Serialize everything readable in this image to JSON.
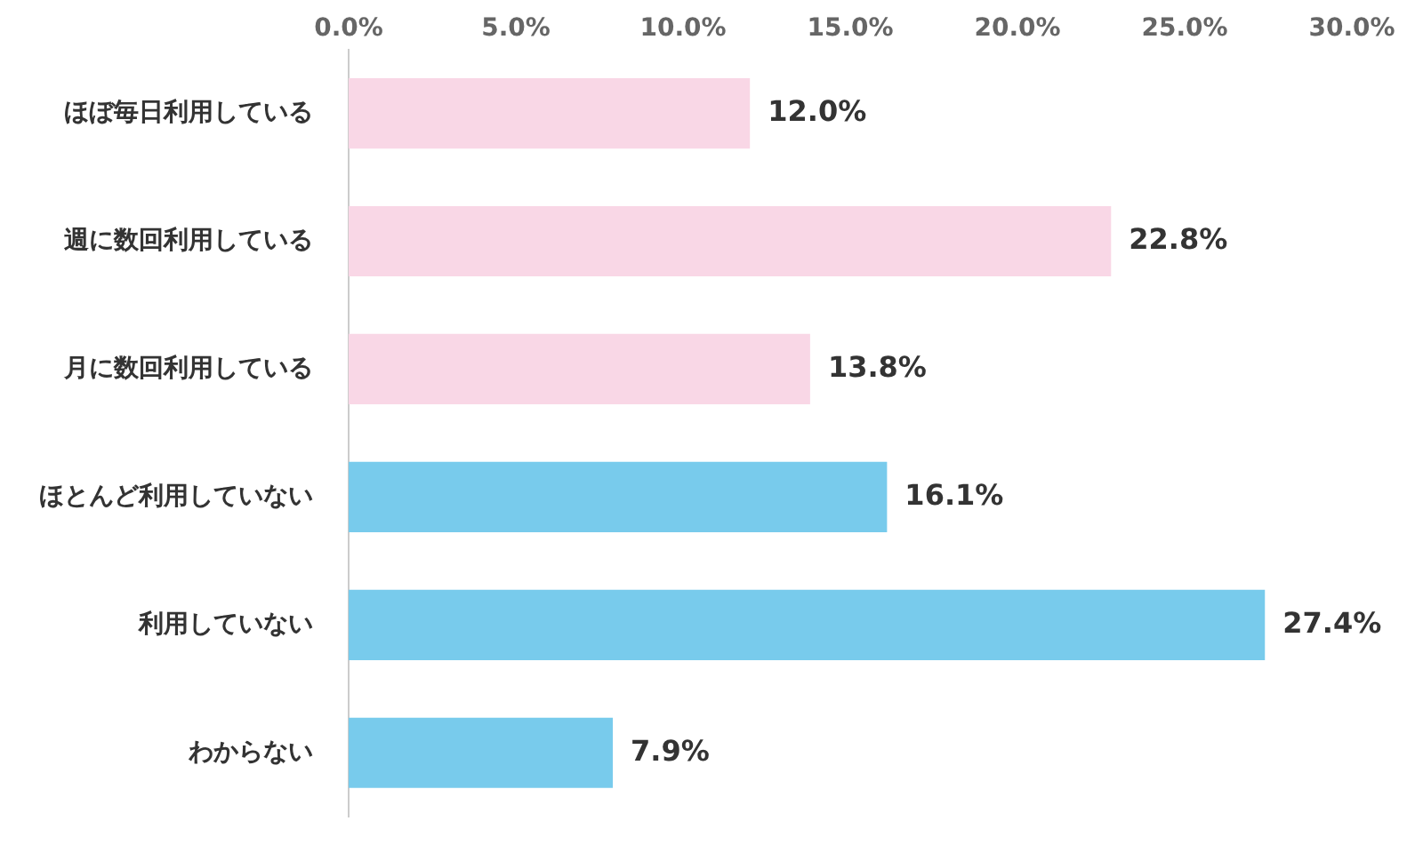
{
  "chart_data": {
    "type": "bar",
    "orientation": "horizontal",
    "categories": [
      "ほぼ毎日利用している",
      "週に数回利用している",
      "月に数回利用している",
      "ほとんど利用していない",
      "利用していない",
      "わからない"
    ],
    "values": [
      12.0,
      22.8,
      13.8,
      16.1,
      27.4,
      7.9
    ],
    "colors": [
      "#f9d7e6",
      "#f9d7e6",
      "#f9d7e6",
      "#78cbec",
      "#78cbec",
      "#78cbec"
    ],
    "value_labels": [
      "12.0%",
      "22.8%",
      "13.8%",
      "16.1%",
      "27.4%",
      "7.9%"
    ],
    "xlim": [
      0,
      30
    ],
    "xticks": [
      {
        "value": 0,
        "label": "0.0%"
      },
      {
        "value": 5,
        "label": "5.0%"
      },
      {
        "value": 10,
        "label": "10.0%"
      },
      {
        "value": 15,
        "label": "15.0%"
      },
      {
        "value": 20,
        "label": "20.0%"
      },
      {
        "value": 25,
        "label": "25.0%"
      },
      {
        "value": 30,
        "label": "30.0%"
      }
    ]
  }
}
